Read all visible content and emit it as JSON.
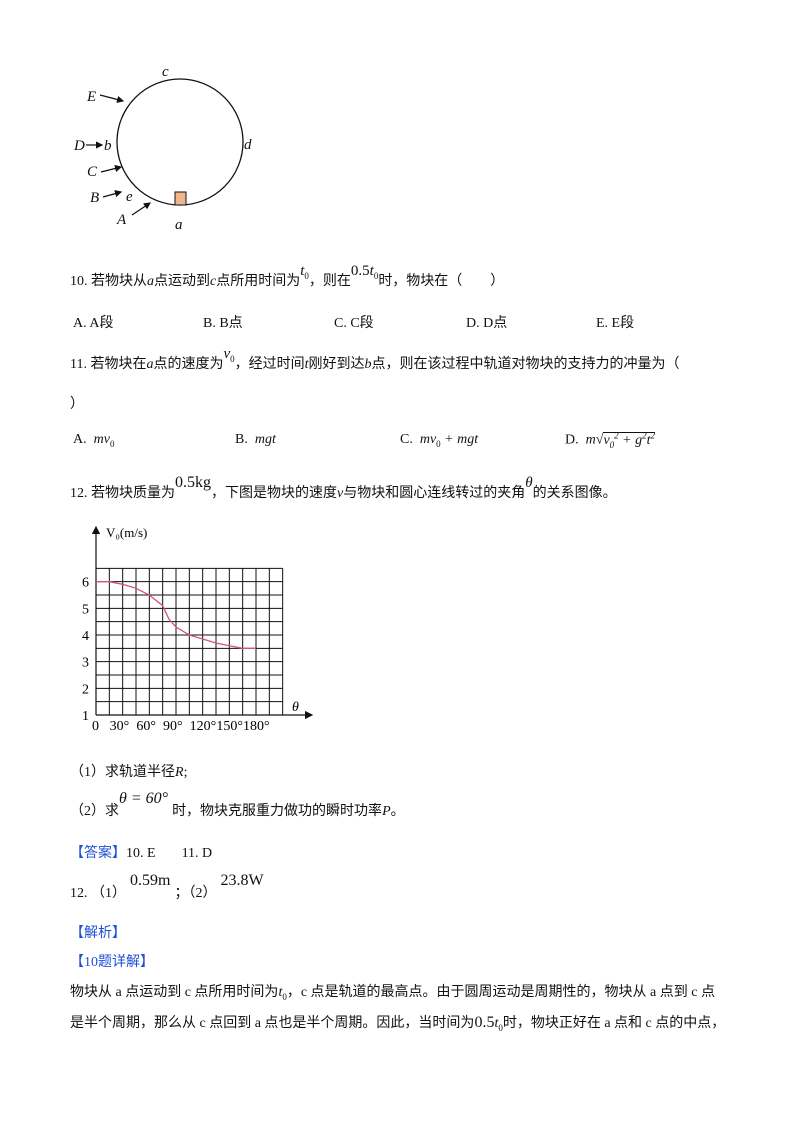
{
  "diagram": {
    "labels": {
      "c": "c",
      "d": "d",
      "E": "E",
      "D": "D",
      "b": "b",
      "C": "C",
      "B": "B",
      "e": "e",
      "A": "A",
      "a": "a"
    },
    "block_color": "#f2b48a"
  },
  "q10": {
    "prefix": "10. 若物块从",
    "a": "a",
    "mid1": "点运动到",
    "c": "c",
    "mid2": "点所用时间为",
    "t0": "t",
    "t0_sub": "0",
    "mid3": "，则在",
    "half": "0.5",
    "half_t": "t",
    "half_sub": "0",
    "suffix": "时，物块在（　　）",
    "options": [
      "A. A段",
      "B. B点",
      "C. C段",
      "D. D点",
      "E. E段"
    ]
  },
  "q11": {
    "prefix": "11. 若物块在",
    "a": "a",
    "mid1": "点的速度为",
    "v0": "v",
    "v0_sub": "0",
    "mid2": "，经过时间",
    "t": "t",
    "mid3": "刚好到达",
    "b": "b",
    "suffix": "点，则在该过程中轨道对物块的支持力的冲量为（",
    "close": "）",
    "options": [
      {
        "label": "A.",
        "expr": "mv",
        "sub": "0"
      },
      {
        "label": "B.",
        "expr": "mgt"
      },
      {
        "label": "C.",
        "expr": "mv",
        "sub": "0",
        "rest": " + mgt"
      },
      {
        "label": "D.",
        "expr": "m",
        "sqrt": "v",
        "sqrt_sub": "0",
        "sqrt_sup": "2",
        "sqrt_rest": " + g",
        "sqrt_sup2": "2",
        "sqrt_t": "t",
        "sqrt_sup3": "2"
      }
    ]
  },
  "q12": {
    "prefix": "12. 若物块质量为",
    "mass": "0.5kg",
    "mid": "，下图是物块的速度",
    "v": "v",
    "mid2": "与物块和圆心连线转过的夹角",
    "theta": "θ",
    "suffix": "的关系图像。",
    "sub1_prefix": "（1）求轨道半径",
    "sub1_R": "R",
    "sub1_suffix": ";",
    "sub2_prefix": "（2）求",
    "sub2_expr": "θ = 60°",
    "sub2_mid": "时，物块克服重力做功的瞬时功率",
    "sub2_P": "P",
    "sub2_suffix": "。"
  },
  "chart_data": {
    "type": "line",
    "ylabel": "V₀(m/s)",
    "xlabel": "θ",
    "x_ticks": [
      "0",
      "30°",
      "60°",
      "90°",
      "120°",
      "150°",
      "180°"
    ],
    "y_ticks": [
      "1",
      "2",
      "3",
      "4",
      "5",
      "6"
    ],
    "xlim": [
      0,
      210
    ],
    "ylim": [
      1,
      6.5
    ],
    "grid": true,
    "line_color": "#d0557a",
    "x": [
      0,
      15,
      30,
      45,
      60,
      75,
      82,
      90,
      105,
      120,
      135,
      150,
      165,
      180
    ],
    "y": [
      6.0,
      6.0,
      5.9,
      5.75,
      5.5,
      5.1,
      4.6,
      4.3,
      4.0,
      3.85,
      3.7,
      3.6,
      3.5,
      3.5
    ]
  },
  "answer": {
    "tag": "【答案】",
    "a10": "10. E",
    "a11": "11. D",
    "a12_prefix": "12. （1）",
    "a12_1": "0.59m",
    "a12_sep": "；（2）",
    "a12_2": "23.8W"
  },
  "analysis": {
    "tag": "【解析】",
    "sub_tag": "【10题详解】",
    "p1_a": "物块从 a 点运动到 c 点所用时间为",
    "p1_t": "t",
    "p1_sub": "0",
    "p1_b": "，c 点是轨道的最高点。由于圆周运动是周期性的，物块从 a 点到 c 点",
    "p2_a": "是半个周期，那么从 c 点回到 a 点也是半个周期。因此，当时间为",
    "p2_half": "0.5",
    "p2_t": "t",
    "p2_sub": "0",
    "p2_b": "时，物块正好在 a 点和 c 点的中点，"
  }
}
